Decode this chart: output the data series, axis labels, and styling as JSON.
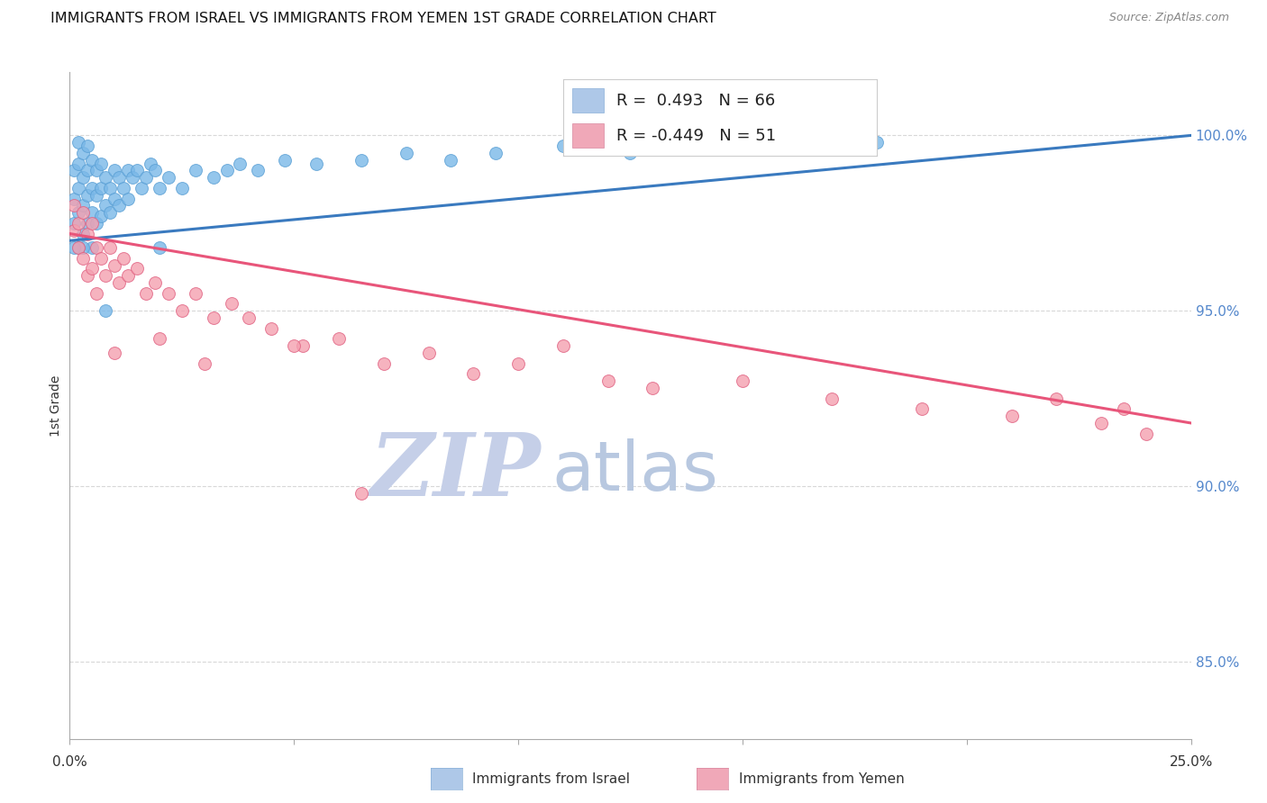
{
  "title": "IMMIGRANTS FROM ISRAEL VS IMMIGRANTS FROM YEMEN 1ST GRADE CORRELATION CHART",
  "source": "Source: ZipAtlas.com",
  "ylabel": "1st Grade",
  "ytick_labels": [
    "100.0%",
    "95.0%",
    "90.0%",
    "85.0%"
  ],
  "ytick_values": [
    1.0,
    0.95,
    0.9,
    0.85
  ],
  "xlim": [
    0.0,
    0.25
  ],
  "ylim": [
    0.828,
    1.018
  ],
  "israel_color": "#7ab8e8",
  "israel_edge_color": "#5a9fd4",
  "yemen_color": "#f4a0b0",
  "yemen_edge_color": "#e06080",
  "israel_line_color": "#3a7abf",
  "yemen_line_color": "#e8557a",
  "R_israel": 0.493,
  "N_israel": 66,
  "R_yemen": -0.449,
  "N_yemen": 51,
  "israel_x": [
    0.001,
    0.001,
    0.001,
    0.002,
    0.002,
    0.002,
    0.002,
    0.003,
    0.003,
    0.003,
    0.003,
    0.004,
    0.004,
    0.004,
    0.004,
    0.005,
    0.005,
    0.005,
    0.006,
    0.006,
    0.006,
    0.007,
    0.007,
    0.007,
    0.008,
    0.008,
    0.009,
    0.009,
    0.01,
    0.01,
    0.011,
    0.011,
    0.012,
    0.013,
    0.013,
    0.014,
    0.015,
    0.016,
    0.017,
    0.018,
    0.019,
    0.02,
    0.022,
    0.025,
    0.028,
    0.032,
    0.035,
    0.038,
    0.042,
    0.048,
    0.055,
    0.065,
    0.075,
    0.085,
    0.095,
    0.11,
    0.125,
    0.14,
    0.16,
    0.18,
    0.02,
    0.008,
    0.005,
    0.003,
    0.002,
    0.001
  ],
  "israel_y": [
    0.975,
    0.982,
    0.99,
    0.978,
    0.985,
    0.992,
    0.998,
    0.972,
    0.98,
    0.988,
    0.995,
    0.975,
    0.983,
    0.99,
    0.997,
    0.978,
    0.985,
    0.993,
    0.975,
    0.983,
    0.99,
    0.977,
    0.985,
    0.992,
    0.98,
    0.988,
    0.978,
    0.985,
    0.982,
    0.99,
    0.98,
    0.988,
    0.985,
    0.982,
    0.99,
    0.988,
    0.99,
    0.985,
    0.988,
    0.992,
    0.99,
    0.985,
    0.988,
    0.985,
    0.99,
    0.988,
    0.99,
    0.992,
    0.99,
    0.993,
    0.992,
    0.993,
    0.995,
    0.993,
    0.995,
    0.997,
    0.995,
    0.997,
    0.997,
    0.998,
    0.968,
    0.95,
    0.968,
    0.968,
    0.968,
    0.968
  ],
  "yemen_x": [
    0.001,
    0.001,
    0.002,
    0.002,
    0.003,
    0.003,
    0.004,
    0.004,
    0.005,
    0.005,
    0.006,
    0.006,
    0.007,
    0.008,
    0.009,
    0.01,
    0.011,
    0.012,
    0.013,
    0.015,
    0.017,
    0.019,
    0.022,
    0.025,
    0.028,
    0.032,
    0.036,
    0.04,
    0.045,
    0.052,
    0.06,
    0.07,
    0.08,
    0.09,
    0.1,
    0.11,
    0.12,
    0.13,
    0.15,
    0.17,
    0.19,
    0.21,
    0.22,
    0.23,
    0.235,
    0.24,
    0.01,
    0.02,
    0.03,
    0.05,
    0.065
  ],
  "yemen_y": [
    0.973,
    0.98,
    0.975,
    0.968,
    0.978,
    0.965,
    0.972,
    0.96,
    0.975,
    0.962,
    0.968,
    0.955,
    0.965,
    0.96,
    0.968,
    0.963,
    0.958,
    0.965,
    0.96,
    0.962,
    0.955,
    0.958,
    0.955,
    0.95,
    0.955,
    0.948,
    0.952,
    0.948,
    0.945,
    0.94,
    0.942,
    0.935,
    0.938,
    0.932,
    0.935,
    0.94,
    0.93,
    0.928,
    0.93,
    0.925,
    0.922,
    0.92,
    0.925,
    0.918,
    0.922,
    0.915,
    0.938,
    0.942,
    0.935,
    0.94,
    0.898
  ],
  "israel_line_x": [
    0.0,
    0.25
  ],
  "israel_line_y": [
    0.97,
    1.0
  ],
  "yemen_line_x": [
    0.0,
    0.25
  ],
  "yemen_line_y": [
    0.972,
    0.918
  ],
  "background_color": "#ffffff",
  "grid_color": "#d8d8d8",
  "watermark_zip": "ZIP",
  "watermark_atlas": "atlas",
  "watermark_color_zip": "#c5cfe8",
  "watermark_color_atlas": "#b8c8e0",
  "legend_box_color_israel": "#aec8e8",
  "legend_box_color_yemen": "#f0a8b8"
}
